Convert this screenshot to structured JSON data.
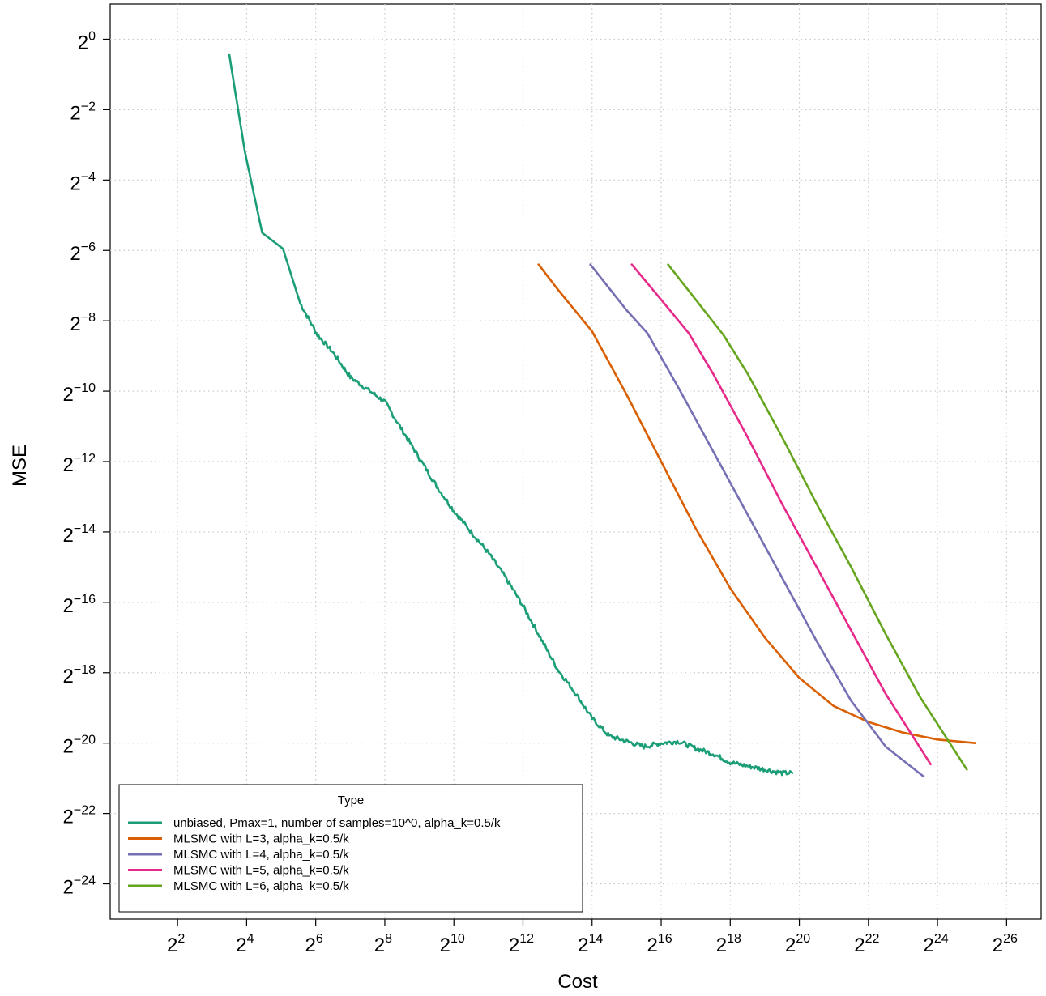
{
  "chart_data": {
    "type": "line",
    "xlabel": "Cost",
    "ylabel": "MSE",
    "x_scale": "log2",
    "y_scale": "log2",
    "xlim_log2": [
      0.05,
      27.0
    ],
    "ylim_log2": [
      -25.0,
      1.0
    ],
    "x_ticks": [
      {
        "base": "2",
        "exp": "2",
        "value": 2
      },
      {
        "base": "2",
        "exp": "4",
        "value": 4
      },
      {
        "base": "2",
        "exp": "6",
        "value": 6
      },
      {
        "base": "2",
        "exp": "8",
        "value": 8
      },
      {
        "base": "2",
        "exp": "10",
        "value": 10
      },
      {
        "base": "2",
        "exp": "12",
        "value": 12
      },
      {
        "base": "2",
        "exp": "14",
        "value": 14
      },
      {
        "base": "2",
        "exp": "16",
        "value": 16
      },
      {
        "base": "2",
        "exp": "18",
        "value": 18
      },
      {
        "base": "2",
        "exp": "20",
        "value": 20
      },
      {
        "base": "2",
        "exp": "22",
        "value": 22
      },
      {
        "base": "2",
        "exp": "24",
        "value": 24
      },
      {
        "base": "2",
        "exp": "26",
        "value": 26
      }
    ],
    "y_ticks": [
      {
        "base": "2",
        "exp": "0",
        "value": 0
      },
      {
        "base": "2",
        "exp": "−2",
        "value": -2
      },
      {
        "base": "2",
        "exp": "−4",
        "value": -4
      },
      {
        "base": "2",
        "exp": "−6",
        "value": -6
      },
      {
        "base": "2",
        "exp": "−8",
        "value": -8
      },
      {
        "base": "2",
        "exp": "−10",
        "value": -10
      },
      {
        "base": "2",
        "exp": "−12",
        "value": -12
      },
      {
        "base": "2",
        "exp": "−14",
        "value": -14
      },
      {
        "base": "2",
        "exp": "−16",
        "value": -16
      },
      {
        "base": "2",
        "exp": "−18",
        "value": -18
      },
      {
        "base": "2",
        "exp": "−20",
        "value": -20
      },
      {
        "base": "2",
        "exp": "−22",
        "value": -22
      },
      {
        "base": "2",
        "exp": "−24",
        "value": -24
      }
    ],
    "grid": true,
    "legend": {
      "title": "Type",
      "placement": "bottom-left"
    },
    "series": [
      {
        "name": "unbiased, Pmax=1, number of samples=10^0, alpha_k=0.5/k",
        "color": "#1b9e77",
        "jitter": 0.06,
        "points_log2": [
          [
            3.5,
            -0.45
          ],
          [
            3.95,
            -3.2
          ],
          [
            4.45,
            -5.5
          ],
          [
            5.05,
            -5.95
          ],
          [
            5.55,
            -7.5
          ],
          [
            6.05,
            -8.4
          ],
          [
            6.5,
            -8.9
          ],
          [
            7.0,
            -9.6
          ],
          [
            7.5,
            -9.95
          ],
          [
            8.0,
            -10.3
          ],
          [
            8.5,
            -11.1
          ],
          [
            9.0,
            -11.9
          ],
          [
            9.5,
            -12.7
          ],
          [
            10.0,
            -13.4
          ],
          [
            10.5,
            -14.0
          ],
          [
            11.0,
            -14.6
          ],
          [
            11.5,
            -15.3
          ],
          [
            12.0,
            -16.1
          ],
          [
            12.5,
            -17.0
          ],
          [
            13.0,
            -17.9
          ],
          [
            13.5,
            -18.55
          ],
          [
            14.0,
            -19.3
          ],
          [
            14.5,
            -19.8
          ],
          [
            15.0,
            -19.95
          ],
          [
            15.5,
            -20.1
          ],
          [
            16.0,
            -20.0
          ],
          [
            16.5,
            -19.95
          ],
          [
            17.0,
            -20.15
          ],
          [
            17.5,
            -20.3
          ],
          [
            18.0,
            -20.55
          ],
          [
            18.5,
            -20.65
          ],
          [
            19.0,
            -20.75
          ],
          [
            19.5,
            -20.85
          ],
          [
            19.8,
            -20.85
          ]
        ]
      },
      {
        "name": "MLSMC with L=3, alpha_k=0.5/k",
        "color": "#d95f02",
        "jitter": 0,
        "points_log2": [
          [
            12.45,
            -6.4
          ],
          [
            13.0,
            -7.1
          ],
          [
            14.0,
            -8.3
          ],
          [
            15.0,
            -10.1
          ],
          [
            16.0,
            -12.0
          ],
          [
            17.0,
            -13.9
          ],
          [
            18.0,
            -15.6
          ],
          [
            19.0,
            -17.0
          ],
          [
            20.0,
            -18.15
          ],
          [
            21.0,
            -18.95
          ],
          [
            22.0,
            -19.4
          ],
          [
            23.0,
            -19.7
          ],
          [
            24.0,
            -19.9
          ],
          [
            25.1,
            -20.0
          ]
        ]
      },
      {
        "name": "MLSMC with L=4, alpha_k=0.5/k",
        "color": "#7570b3",
        "jitter": 0,
        "points_log2": [
          [
            13.95,
            -6.4
          ],
          [
            15.0,
            -7.7
          ],
          [
            15.6,
            -8.35
          ],
          [
            16.5,
            -9.9
          ],
          [
            17.5,
            -11.7
          ],
          [
            18.5,
            -13.5
          ],
          [
            19.5,
            -15.3
          ],
          [
            20.5,
            -17.1
          ],
          [
            21.5,
            -18.8
          ],
          [
            22.5,
            -20.1
          ],
          [
            23.6,
            -20.95
          ]
        ]
      },
      {
        "name": "MLSMC with L=5, alpha_k=0.5/k",
        "color": "#e7298a",
        "jitter": 0,
        "points_log2": [
          [
            15.15,
            -6.4
          ],
          [
            16.0,
            -7.4
          ],
          [
            16.8,
            -8.35
          ],
          [
            17.5,
            -9.5
          ],
          [
            18.5,
            -11.3
          ],
          [
            19.5,
            -13.2
          ],
          [
            20.5,
            -15.0
          ],
          [
            21.5,
            -16.8
          ],
          [
            22.5,
            -18.6
          ],
          [
            23.8,
            -20.6
          ]
        ]
      },
      {
        "name": "MLSMC with L=6, alpha_k=0.5/k",
        "color": "#66a61e",
        "jitter": 0,
        "points_log2": [
          [
            16.2,
            -6.4
          ],
          [
            17.0,
            -7.4
          ],
          [
            17.8,
            -8.4
          ],
          [
            18.5,
            -9.5
          ],
          [
            19.5,
            -11.3
          ],
          [
            20.5,
            -13.2
          ],
          [
            21.5,
            -15.0
          ],
          [
            22.5,
            -16.9
          ],
          [
            23.5,
            -18.7
          ],
          [
            24.85,
            -20.75
          ]
        ]
      }
    ]
  }
}
